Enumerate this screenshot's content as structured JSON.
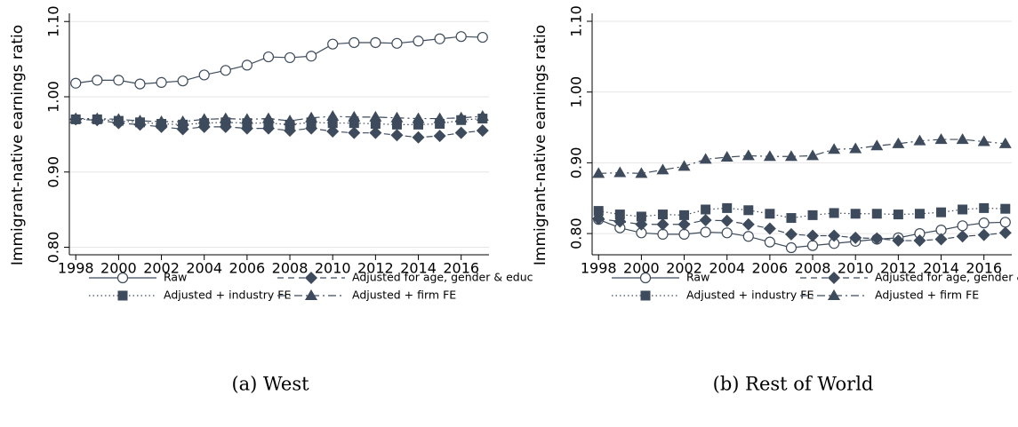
{
  "charts": [
    {
      "type": "line",
      "caption": "(a) West",
      "ylabel": "Immigrant-native earnings ratio",
      "x": [
        1998,
        1999,
        2000,
        2001,
        2002,
        2003,
        2004,
        2005,
        2006,
        2007,
        2008,
        2009,
        2010,
        2011,
        2012,
        2013,
        2014,
        2015,
        2016,
        2017
      ],
      "xlim": [
        1997.7,
        2017.3
      ],
      "xticks": [
        1998,
        2000,
        2002,
        2004,
        2006,
        2008,
        2010,
        2012,
        2014,
        2016
      ],
      "ylim": [
        0.79,
        1.105
      ],
      "yticks": [
        {
          "value": 0.8,
          "label": "0.80"
        },
        {
          "value": 0.9,
          "label": "0.90"
        },
        {
          "value": 1.0,
          "label": "1.00"
        },
        {
          "value": 1.1,
          "label": "1.10"
        }
      ],
      "grid": true,
      "series": [
        {
          "name": "Raw",
          "color": "#3d4b5c",
          "marker": "circle-open",
          "dash": "solid",
          "values": [
            1.018,
            1.022,
            1.022,
            1.017,
            1.019,
            1.021,
            1.029,
            1.035,
            1.042,
            1.053,
            1.052,
            1.054,
            1.07,
            1.072,
            1.072,
            1.071,
            1.074,
            1.077,
            1.08,
            1.079
          ]
        },
        {
          "name": "Adjusted for age, gender & educ",
          "color": "#3d4b5c",
          "marker": "diamond",
          "dash": "dash",
          "values": [
            0.97,
            0.969,
            0.965,
            0.963,
            0.96,
            0.957,
            0.96,
            0.96,
            0.958,
            0.958,
            0.955,
            0.958,
            0.954,
            0.952,
            0.952,
            0.949,
            0.946,
            0.948,
            0.952,
            0.955
          ]
        },
        {
          "name": "Adjusted + industry FE",
          "color": "#3d4b5c",
          "marker": "square",
          "dash": "dot",
          "values": [
            0.97,
            0.97,
            0.968,
            0.966,
            0.964,
            0.963,
            0.965,
            0.966,
            0.965,
            0.965,
            0.963,
            0.966,
            0.965,
            0.965,
            0.964,
            0.963,
            0.963,
            0.964,
            0.969,
            0.971
          ]
        },
        {
          "name": "Adjusted + firm FE",
          "color": "#3d4b5c",
          "marker": "triangle",
          "dash": "dashdot",
          "values": [
            0.971,
            0.971,
            0.97,
            0.968,
            0.967,
            0.967,
            0.97,
            0.971,
            0.97,
            0.971,
            0.968,
            0.972,
            0.974,
            0.973,
            0.973,
            0.972,
            0.971,
            0.971,
            0.972,
            0.974
          ]
        }
      ]
    },
    {
      "type": "line",
      "caption": "(b) Rest of World",
      "ylabel": "Immigrant-native earnings ratio",
      "x": [
        1998,
        1999,
        2000,
        2001,
        2002,
        2003,
        2004,
        2005,
        2006,
        2007,
        2008,
        2009,
        2010,
        2011,
        2012,
        2013,
        2014,
        2015,
        2016,
        2017
      ],
      "xlim": [
        1997.7,
        2017.3
      ],
      "xticks": [
        1998,
        2000,
        2002,
        2004,
        2006,
        2008,
        2010,
        2012,
        2014,
        2016
      ],
      "ylim": [
        0.77,
        1.105
      ],
      "yticks": [
        {
          "value": 0.8,
          "label": "0.80"
        },
        {
          "value": 0.9,
          "label": "0.90"
        },
        {
          "value": 1.0,
          "label": "1.00"
        },
        {
          "value": 1.1,
          "label": "1.10"
        }
      ],
      "grid": true,
      "series": [
        {
          "name": "Raw",
          "color": "#3d4b5c",
          "marker": "circle-open",
          "dash": "solid",
          "values": [
            0.82,
            0.808,
            0.801,
            0.799,
            0.799,
            0.802,
            0.801,
            0.796,
            0.788,
            0.78,
            0.783,
            0.786,
            0.789,
            0.792,
            0.794,
            0.8,
            0.805,
            0.811,
            0.815,
            0.816
          ]
        },
        {
          "name": "Adjusted for age, gender & educ",
          "color": "#3d4b5c",
          "marker": "diamond",
          "dash": "dash",
          "values": [
            0.821,
            0.817,
            0.813,
            0.813,
            0.813,
            0.819,
            0.818,
            0.813,
            0.807,
            0.799,
            0.797,
            0.797,
            0.794,
            0.793,
            0.79,
            0.79,
            0.792,
            0.796,
            0.798,
            0.801
          ]
        },
        {
          "name": "Adjusted + industry FE",
          "color": "#3d4b5c",
          "marker": "square",
          "dash": "dot",
          "values": [
            0.832,
            0.827,
            0.824,
            0.827,
            0.826,
            0.834,
            0.836,
            0.833,
            0.828,
            0.822,
            0.826,
            0.829,
            0.828,
            0.828,
            0.827,
            0.828,
            0.83,
            0.834,
            0.836,
            0.835
          ]
        },
        {
          "name": "Adjusted + firm FE",
          "color": "#3d4b5c",
          "marker": "triangle",
          "dash": "dashdot",
          "values": [
            0.885,
            0.886,
            0.885,
            0.89,
            0.895,
            0.905,
            0.908,
            0.91,
            0.909,
            0.909,
            0.91,
            0.919,
            0.92,
            0.924,
            0.927,
            0.931,
            0.933,
            0.933,
            0.93,
            0.927
          ]
        }
      ]
    }
  ]
}
